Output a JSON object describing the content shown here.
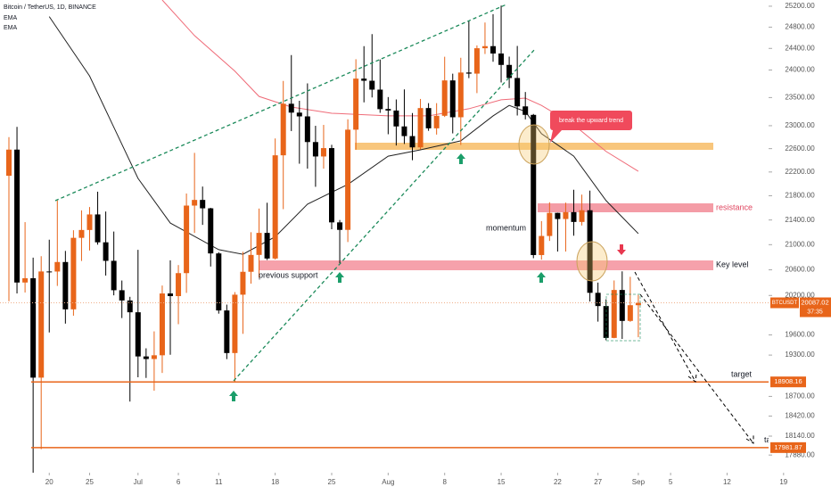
{
  "chart_data": {
    "type": "candlestick",
    "title": "Bitcoin / TetherUS, 1D, BINANCE",
    "log_scale": true,
    "up_color": "#e8651a",
    "down_color": "#000000",
    "categories": [
      "Jun 15",
      "Jun 16",
      "Jun 17",
      "Jun 18",
      "Jun 19",
      "Jun 20",
      "Jun 21",
      "Jun 22",
      "Jun 23",
      "Jun 24",
      "Jun 25",
      "Jun 26",
      "Jun 27",
      "Jun 28",
      "Jun 29",
      "Jun 30",
      "Jul 1",
      "Jul 2",
      "Jul 3",
      "Jul 4",
      "Jul 5",
      "Jul 6",
      "Jul 7",
      "Jul 8",
      "Jul 9",
      "Jul 10",
      "Jul 11",
      "Jul 12",
      "Jul 13",
      "Jul 14",
      "Jul 15",
      "Jul 16",
      "Jul 17",
      "Jul 18",
      "Jul 19",
      "Jul 20",
      "Jul 21",
      "Jul 22",
      "Jul 23",
      "Jul 24",
      "Jul 25",
      "Jul 26",
      "Jul 27",
      "Jul 28",
      "Jul 29",
      "Jul 30",
      "Jul 31",
      "Aug 1",
      "Aug 2",
      "Aug 3",
      "Aug 4",
      "Aug 5",
      "Aug 6",
      "Aug 7",
      "Aug 8",
      "Aug 9",
      "Aug 10",
      "Aug 11",
      "Aug 12",
      "Aug 13",
      "Aug 14",
      "Aug 15",
      "Aug 16",
      "Aug 17",
      "Aug 18",
      "Aug 19",
      "Aug 20",
      "Aug 21",
      "Aug 22",
      "Aug 23",
      "Aug 24",
      "Aug 25",
      "Aug 26",
      "Aug 27",
      "Aug 28",
      "Aug 29",
      "Aug 30",
      "Aug 31",
      "Sep 1",
      "Sep 2",
      "Sep 3",
      "Sep 4",
      "Sep 5",
      "Sep 6",
      "Sep 7",
      "Sep 8",
      "Sep 9",
      "Sep 10",
      "Sep 11",
      "Sep 12",
      "Sep 13",
      "Sep 14",
      "Sep 15",
      "Sep 16",
      "Sep 17",
      "Sep 18",
      "Sep 19"
    ],
    "open": [
      22136,
      22583,
      20401,
      20468,
      18970,
      20574,
      20573,
      20723,
      19987,
      21110,
      21237,
      21491,
      21038,
      20742,
      20281,
      20123,
      19942,
      19280,
      19242,
      19297,
      20231,
      20190,
      20548,
      21637,
      21731,
      21592,
      20860,
      19970,
      19330,
      20212,
      20569,
      20836,
      21190,
      20779,
      22485,
      23389,
      23231,
      23164,
      22714,
      22465,
      22609,
      21361,
      21239,
      22930,
      23843,
      23804,
      23643,
      23296,
      23268,
      22987,
      22818,
      22622,
      23312,
      22954,
      23175,
      23810,
      23149,
      23954,
      23934,
      24403,
      24442,
      24305,
      24094,
      23854,
      23342,
      23191,
      20834,
      21140,
      21517,
      21416,
      21529,
      21368,
      21560,
      20241,
      20037,
      19555,
      20285,
      19811,
      20050,
      null,
      null,
      null,
      null,
      null,
      null,
      null,
      null,
      null,
      null,
      null,
      null,
      null,
      null,
      null,
      null,
      null,
      null
    ],
    "high": [
      22800,
      22980,
      21365,
      20792,
      20815,
      21080,
      21723,
      20900,
      21233,
      21558,
      21614,
      21868,
      21539,
      21212,
      20432,
      20179,
      20918,
      19400,
      19653,
      20354,
      20750,
      20675,
      21838,
      22527,
      21954,
      21600,
      20880,
      20059,
      20252,
      20887,
      21200,
      21588,
      21684,
      22777,
      23800,
      24276,
      23442,
      23756,
      22998,
      23014,
      22666,
      21400,
      23112,
      24199,
      24442,
      24668,
      24194,
      23509,
      23466,
      23647,
      23223,
      23475,
      23400,
      23400,
      24245,
      23933,
      24226,
      24918,
      24456,
      24888,
      25047,
      25211,
      24247,
      24446,
      23600,
      23208,
      21382,
      21692,
      21520,
      21686,
      21900,
      21819,
      21886,
      20400,
      20141,
      20433,
      20576,
      20490,
      20208,
      null,
      null,
      null,
      null,
      null,
      null,
      null,
      null,
      null,
      null,
      null,
      null,
      null,
      null,
      null,
      null,
      null,
      null
    ],
    "low": [
      20111,
      20232,
      20246,
      17622,
      17960,
      19637,
      20348,
      19770,
      19890,
      20740,
      20906,
      21000,
      20510,
      20202,
      19854,
      18626,
      18975,
      18966,
      18781,
      19038,
      19305,
      19761,
      20240,
      21189,
      21320,
      20652,
      19921,
      19240,
      18910,
      19616,
      20384,
      20478,
      20755,
      20762,
      21579,
      22906,
      22341,
      22257,
      21950,
      22257,
      21250,
      20706,
      21042,
      22582,
      23414,
      23502,
      23227,
      22850,
      22654,
      22681,
      22400,
      22586,
      22910,
      22844,
      23154,
      22865,
      22664,
      23852,
      23580,
      24296,
      24152,
      23773,
      23671,
      23180,
      23111,
      20783,
      20761,
      21060,
      20890,
      20890,
      21145,
      21310,
      20107,
      19800,
      19520,
      19550,
      19540,
      19797,
      19565,
      null,
      null,
      null,
      null,
      null,
      null,
      null,
      null,
      null,
      null,
      null,
      null,
      null,
      null,
      null,
      null,
      null,
      null
    ],
    "close": [
      22583,
      20401,
      20468,
      18970,
      20574,
      20573,
      20723,
      19987,
      21110,
      21237,
      21491,
      21038,
      20742,
      20281,
      20123,
      19942,
      19280,
      19242,
      19297,
      20231,
      20190,
      20548,
      21637,
      21731,
      21592,
      20860,
      19970,
      19330,
      20212,
      20569,
      20836,
      21190,
      20779,
      22485,
      23389,
      23231,
      23164,
      22714,
      22465,
      22609,
      21361,
      21239,
      22930,
      23843,
      23804,
      23643,
      23293,
      23268,
      22987,
      22818,
      22622,
      23312,
      22954,
      23175,
      23810,
      23149,
      23954,
      23934,
      24403,
      24442,
      24305,
      24094,
      23854,
      23342,
      23191,
      20834,
      21140,
      21517,
      21416,
      21529,
      21368,
      21560,
      20241,
      20037,
      19555,
      20285,
      19811,
      20050,
      20087.02,
      null,
      null,
      null,
      null,
      null,
      null,
      null,
      null,
      null,
      null,
      null,
      null,
      null,
      null,
      null,
      null,
      null,
      null
    ],
    "series": [
      {
        "name": "EMA",
        "color": "#222222",
        "x": [
          "Jun 20",
          "Jun 25",
          "Jul 1",
          "Jul 5",
          "Jul 11",
          "Jul 14",
          "Jul 18",
          "Jul 22",
          "Jul 27",
          "Aug 1",
          "Aug 5",
          "Aug 10",
          "Aug 14",
          "Aug 16",
          "Aug 18",
          "Aug 20",
          "Aug 24",
          "Aug 28",
          "Sep 1"
        ],
        "values": [
          25000,
          23890,
          22092,
          21350,
          20920,
          20846,
          21127,
          21660,
          21990,
          22470,
          22580,
          22735,
          23173,
          23360,
          23251,
          22860,
          22470,
          21720,
          21178
        ]
      },
      {
        "name": "EMA",
        "color": "#ef6b78",
        "x": [
          "Jul 4",
          "Jul 8",
          "Jul 13",
          "Jul 16",
          "Jul 20",
          "Jul 25",
          "Aug 1",
          "Aug 6",
          "Aug 11",
          "Aug 15",
          "Aug 18",
          "Aug 20",
          "Aug 24",
          "Aug 28",
          "Sep 1"
        ],
        "values": [
          25320,
          24640,
          23980,
          23520,
          23330,
          23220,
          23173,
          23173,
          23300,
          23460,
          23490,
          23360,
          23015,
          22552,
          22211
        ]
      }
    ],
    "ylim": [
      17640,
      25320
    ],
    "yticks": [
      {
        "value": 25200,
        "label": "25200.00"
      },
      {
        "value": 24800,
        "label": "24800.00"
      },
      {
        "value": 24400,
        "label": "24400.00"
      },
      {
        "value": 24000,
        "label": "24000.00"
      },
      {
        "value": 23500,
        "label": "23500.00"
      },
      {
        "value": 23000,
        "label": "23000.00"
      },
      {
        "value": 22600,
        "label": "22600.00"
      },
      {
        "value": 22200,
        "label": "22200.00"
      },
      {
        "value": 21800,
        "label": "21800.00"
      },
      {
        "value": 21400,
        "label": "21400.00"
      },
      {
        "value": 21000,
        "label": "21000.00"
      },
      {
        "value": 20600,
        "label": "20600.00"
      },
      {
        "value": 20200,
        "label": "20200.00"
      },
      {
        "value": 19600,
        "label": "19600.00"
      },
      {
        "value": 19300,
        "label": "19300.00"
      },
      {
        "value": 18700,
        "label": "18700.00"
      },
      {
        "value": 18420,
        "label": "18420.00"
      },
      {
        "value": 18140,
        "label": "18140.00"
      },
      {
        "value": 17880,
        "label": "17880.00"
      }
    ],
    "xticks": [
      {
        "value": "Jun 20",
        "label": "20"
      },
      {
        "value": "Jun 25",
        "label": "25"
      },
      {
        "value": "Jul 1",
        "label": "Jul"
      },
      {
        "value": "Jul 6",
        "label": "6"
      },
      {
        "value": "Jul 11",
        "label": "11"
      },
      {
        "value": "Jul 18",
        "label": "18"
      },
      {
        "value": "Jul 25",
        "label": "25"
      },
      {
        "value": "Aug 1",
        "label": "Aug"
      },
      {
        "value": "Aug 8",
        "label": "8"
      },
      {
        "value": "Aug 15",
        "label": "15"
      },
      {
        "value": "Aug 22",
        "label": "22"
      },
      {
        "value": "Aug 27",
        "label": "27"
      },
      {
        "value": "Sep 1",
        "label": "Sep"
      },
      {
        "value": "Sep 5",
        "label": "5"
      },
      {
        "value": "Sep 12",
        "label": "12"
      },
      {
        "value": "Sep 19",
        "label": "19"
      }
    ],
    "levels": [
      {
        "value": 18908.16,
        "label": "target",
        "color": "#e8651a"
      },
      {
        "value": 17981.87,
        "label": "target",
        "color": "#e8651a"
      }
    ],
    "last_price": {
      "symbol": "BTCUSDT",
      "value": 20087.02,
      "countdown": "37:35"
    },
    "annotations": {
      "break": "break the upward trend",
      "resistance": "resistance",
      "key_level": "Key level",
      "previous_support": "previous support",
      "momentum": "momentum"
    }
  }
}
